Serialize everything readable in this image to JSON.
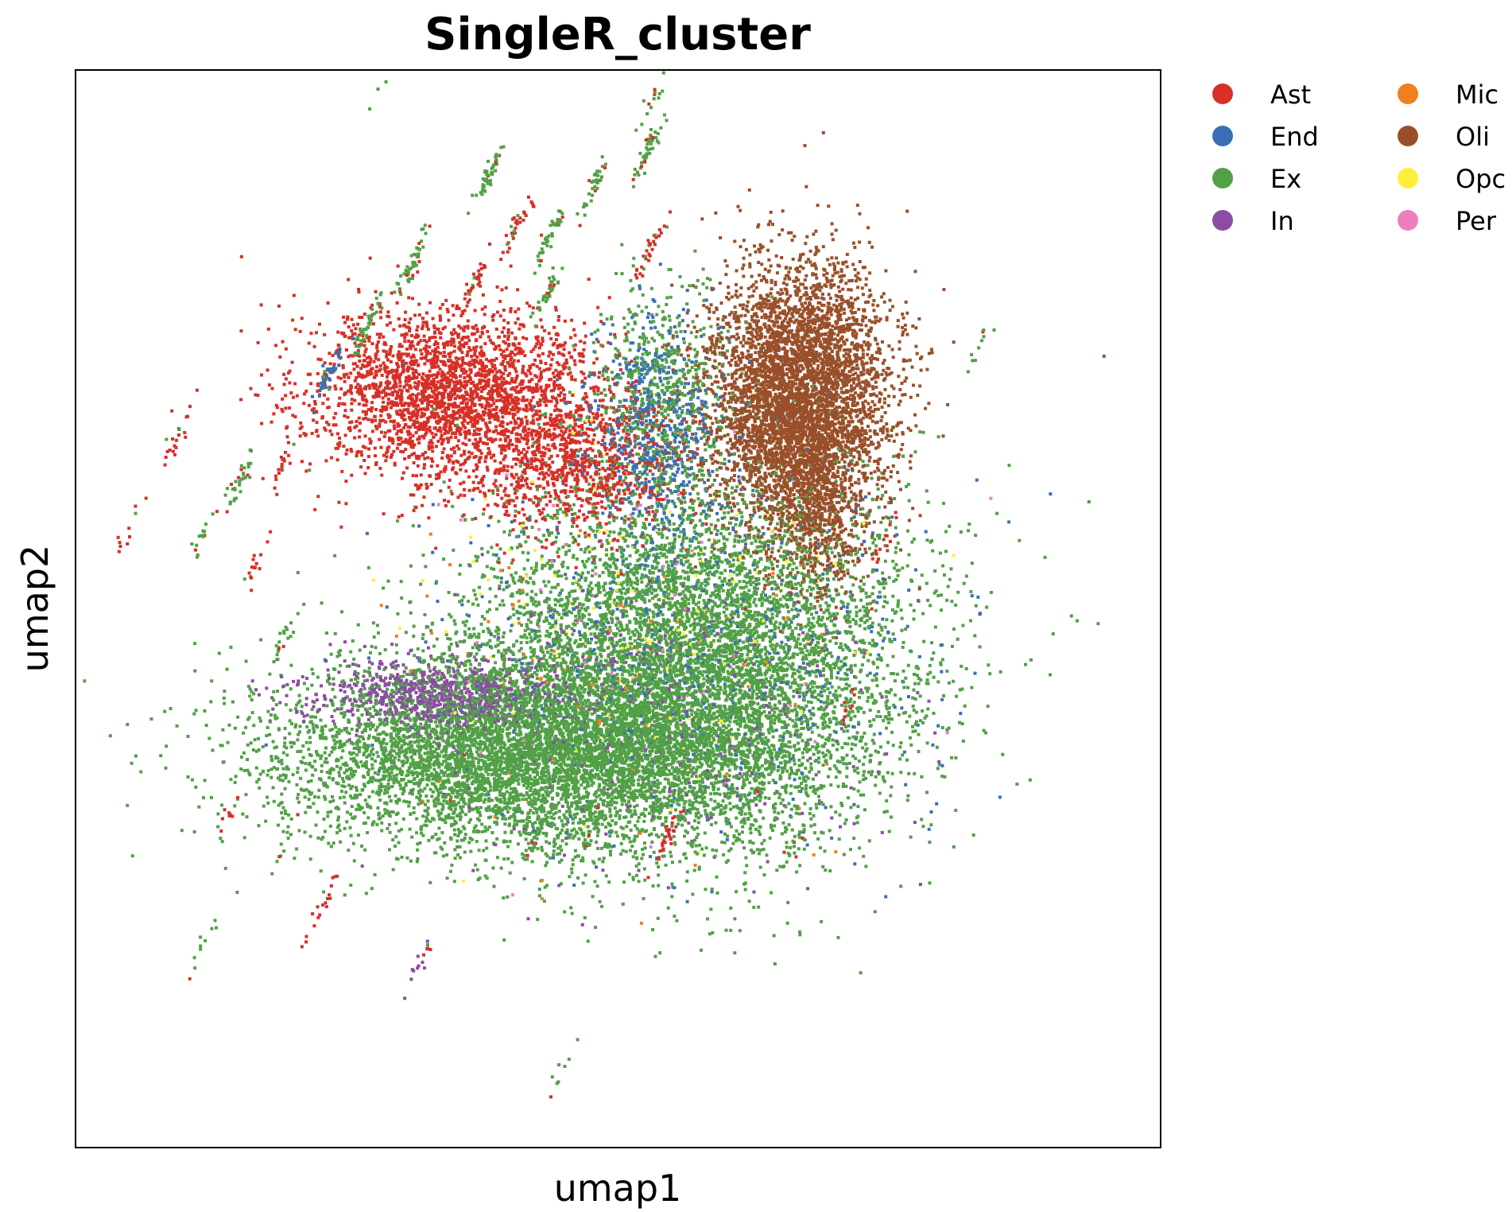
{
  "chart_data": {
    "type": "scatter",
    "title": "SingleR_cluster",
    "xlabel": "umap1",
    "ylabel": "umap2",
    "xlim": [
      -12,
      18
    ],
    "ylim": [
      -10,
      20
    ],
    "xticks": [],
    "yticks": [],
    "grid": false,
    "legend": {
      "placement": "right-outside",
      "columns": 2
    },
    "series": [
      {
        "name": "Ast",
        "color": "#d63027",
        "clusters": [
          {
            "cx": -1.5,
            "cy": 11.0,
            "sx": 2.0,
            "sy": 1.2,
            "n": 2600
          },
          {
            "cx": 1.8,
            "cy": 9.0,
            "sx": 1.6,
            "sy": 1.0,
            "n": 900
          }
        ],
        "sample_points": [
          [
            -2.0,
            11.5
          ],
          [
            -1.0,
            10.5
          ],
          [
            0.5,
            9.8
          ],
          [
            2.0,
            8.8
          ],
          [
            -3.0,
            12.0
          ]
        ]
      },
      {
        "name": "End",
        "color": "#3a6fb5",
        "clusters": [
          {
            "cx": 4.0,
            "cy": 10.0,
            "sx": 0.9,
            "sy": 1.6,
            "n": 600
          },
          {
            "cx": 5.0,
            "cy": 4.0,
            "sx": 3.5,
            "sy": 2.6,
            "n": 700
          }
        ],
        "sample_points": [
          [
            4.0,
            10.5
          ],
          [
            3.8,
            9.5
          ],
          [
            5.5,
            4.5
          ]
        ]
      },
      {
        "name": "Ex",
        "color": "#52a047",
        "clusters": [
          {
            "cx": 0.5,
            "cy": 1.0,
            "sx": 3.5,
            "sy": 1.3,
            "n": 6000
          },
          {
            "cx": 5.0,
            "cy": 3.5,
            "sx": 3.0,
            "sy": 2.5,
            "n": 7000
          },
          {
            "cx": 4.2,
            "cy": 11.0,
            "sx": 0.9,
            "sy": 1.5,
            "n": 600
          }
        ],
        "sample_points": [
          [
            0.0,
            1.0
          ],
          [
            3.0,
            2.5
          ],
          [
            6.0,
            4.0
          ],
          [
            7.5,
            5.5
          ],
          [
            -2.5,
            1.5
          ]
        ]
      },
      {
        "name": "In",
        "color": "#8b4da3",
        "clusters": [
          {
            "cx": -2.0,
            "cy": 2.6,
            "sx": 1.8,
            "sy": 0.5,
            "n": 800
          },
          {
            "cx": 4.0,
            "cy": 2.0,
            "sx": 3.0,
            "sy": 2.0,
            "n": 400
          }
        ],
        "sample_points": [
          [
            -3.0,
            2.8
          ],
          [
            -1.0,
            2.5
          ],
          [
            4.0,
            2.0
          ]
        ]
      },
      {
        "name": "Mic",
        "color": "#f07f1f",
        "clusters": [
          {
            "cx": 3.0,
            "cy": 4.0,
            "sx": 3.0,
            "sy": 3.0,
            "n": 120
          }
        ],
        "sample_points": [
          [
            2.0,
            3.0
          ],
          [
            4.5,
            12.2
          ]
        ]
      },
      {
        "name": "Oli",
        "color": "#99502a",
        "clusters": [
          {
            "cx": 8.0,
            "cy": 11.0,
            "sx": 1.3,
            "sy": 1.8,
            "n": 4500
          },
          {
            "cx": 8.4,
            "cy": 8.0,
            "sx": 0.7,
            "sy": 1.4,
            "n": 800
          }
        ],
        "sample_points": [
          [
            7.5,
            12.0
          ],
          [
            8.5,
            10.5
          ],
          [
            9.0,
            8.5
          ]
        ]
      },
      {
        "name": "Opc",
        "color": "#ffef3a",
        "clusters": [
          {
            "cx": 4.0,
            "cy": 5.0,
            "sx": 3.0,
            "sy": 2.5,
            "n": 160
          }
        ],
        "sample_points": [
          [
            3.0,
            6.0
          ],
          [
            5.0,
            4.0
          ]
        ]
      },
      {
        "name": "Per",
        "color": "#ee7fbf",
        "clusters": [
          {
            "cx": 3.5,
            "cy": 5.0,
            "sx": 3.0,
            "sy": 3.0,
            "n": 60
          }
        ],
        "sample_points": [
          [
            3.5,
            5.5
          ]
        ]
      }
    ],
    "satellites": [
      {
        "cx": -9.2,
        "cy": 9.8,
        "n": 20,
        "color": "#d63027"
      },
      {
        "cx": -7.5,
        "cy": 8.5,
        "n": 35,
        "color": "#52a047"
      },
      {
        "cx": -5.0,
        "cy": 11.5,
        "n": 45,
        "color": "#3a6fb5"
      },
      {
        "cx": -4.0,
        "cy": 12.8,
        "n": 40,
        "color": "#52a047"
      },
      {
        "cx": -2.7,
        "cy": 14.6,
        "n": 45,
        "color": "#52a047"
      },
      {
        "cx": -0.6,
        "cy": 17.0,
        "n": 50,
        "color": "#52a047"
      },
      {
        "cx": 0.3,
        "cy": 15.8,
        "n": 30,
        "color": "#d63027"
      },
      {
        "cx": 1.2,
        "cy": 15.5,
        "n": 40,
        "color": "#52a047"
      },
      {
        "cx": 2.3,
        "cy": 16.7,
        "n": 35,
        "color": "#52a047"
      },
      {
        "cx": 3.8,
        "cy": 17.7,
        "n": 50,
        "color": "#52a047"
      },
      {
        "cx": 4.0,
        "cy": 19.2,
        "n": 15,
        "color": "#52a047"
      },
      {
        "cx": 3.9,
        "cy": 15.0,
        "n": 30,
        "color": "#d63027"
      },
      {
        "cx": -3.5,
        "cy": 19.8,
        "n": 5,
        "color": "#52a047"
      },
      {
        "cx": 1.0,
        "cy": 13.7,
        "n": 35,
        "color": "#52a047"
      },
      {
        "cx": -1.0,
        "cy": 14.0,
        "n": 30,
        "color": "#d63027"
      },
      {
        "cx": 13.0,
        "cy": 12.4,
        "n": 10,
        "color": "#52a047"
      },
      {
        "cx": 10.4,
        "cy": 7.0,
        "n": 15,
        "color": "#d63027"
      },
      {
        "cx": 9.9,
        "cy": 5.0,
        "n": 15,
        "color": "#52a047"
      },
      {
        "cx": 9.4,
        "cy": 2.3,
        "n": 15,
        "color": "#d63027"
      },
      {
        "cx": 8.0,
        "cy": -1.3,
        "n": 20,
        "color": "#52a047"
      },
      {
        "cx": -7.0,
        "cy": 6.3,
        "n": 15,
        "color": "#d63027"
      },
      {
        "cx": -6.2,
        "cy": 4.2,
        "n": 20,
        "color": "#52a047"
      },
      {
        "cx": -7.7,
        "cy": -0.6,
        "n": 8,
        "color": "#d63027"
      },
      {
        "cx": -6.3,
        "cy": -1.7,
        "n": 10,
        "color": "#52a047"
      },
      {
        "cx": -5.0,
        "cy": -2.9,
        "n": 12,
        "color": "#d63027"
      },
      {
        "cx": -10.5,
        "cy": 7.3,
        "n": 10,
        "color": "#d63027"
      },
      {
        "cx": -8.5,
        "cy": -4.3,
        "n": 10,
        "color": "#52a047"
      },
      {
        "cx": -5.6,
        "cy": -4.2,
        "n": 6,
        "color": "#d63027"
      },
      {
        "cx": -2.4,
        "cy": -4.7,
        "n": 15,
        "color": "#8b4da3"
      },
      {
        "cx": 1.5,
        "cy": -7.8,
        "n": 8,
        "color": "#52a047"
      },
      {
        "cx": -1.6,
        "cy": -0.4,
        "n": 20,
        "color": "#52a047"
      },
      {
        "cx": 0.7,
        "cy": -1.5,
        "n": 30,
        "color": "#52a047"
      },
      {
        "cx": 2.2,
        "cy": -1.3,
        "n": 30,
        "color": "#52a047"
      },
      {
        "cx": 4.4,
        "cy": -1.3,
        "n": 30,
        "color": "#d63027"
      },
      {
        "cx": 6.5,
        "cy": -0.8,
        "n": 20,
        "color": "#52a047"
      },
      {
        "cx": -8.5,
        "cy": 7.0,
        "n": 15,
        "color": "#52a047"
      },
      {
        "cx": -6.3,
        "cy": 9.0,
        "n": 15,
        "color": "#d63027"
      }
    ]
  }
}
